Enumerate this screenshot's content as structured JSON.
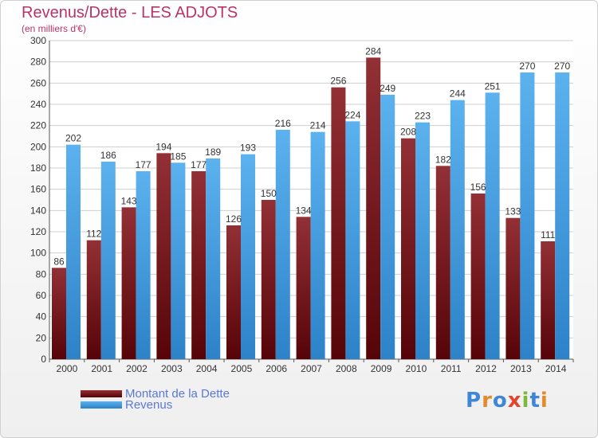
{
  "title": "Revenus/Dette - LES ADJOTS",
  "subtitle": "(en milliers d'€)",
  "colors": {
    "dette": "#7a1a1f",
    "revenus": "#4aa3e6",
    "title": "#b8336a",
    "legend_text": "#5a78d6"
  },
  "legend": [
    {
      "label": "Montant de la Dette",
      "color": "#7a1a1f"
    },
    {
      "label": "Revenus",
      "color": "#4aa3e6"
    }
  ],
  "logo": {
    "text": "Proxiti",
    "letters": [
      {
        "ch": "P",
        "color": "#3f86d6"
      },
      {
        "ch": "r",
        "color": "#e48a2a"
      },
      {
        "ch": "o",
        "color": "#3f86d6"
      },
      {
        "ch": "x",
        "color": "#e0462e"
      },
      {
        "ch": "i",
        "color": "#7cb83a"
      },
      {
        "ch": "t",
        "color": "#3f86d6"
      },
      {
        "ch": "i",
        "color": "#e48a2a"
      }
    ]
  },
  "chart_data": {
    "type": "bar",
    "categories": [
      "2000",
      "2001",
      "2002",
      "2003",
      "2004",
      "2005",
      "2006",
      "2007",
      "2008",
      "2009",
      "2010",
      "2011",
      "2012",
      "2013",
      "2014"
    ],
    "series": [
      {
        "name": "Montant de la Dette",
        "values": [
          86,
          112,
          143,
          194,
          177,
          126,
          150,
          134,
          256,
          284,
          208,
          182,
          156,
          133,
          111
        ]
      },
      {
        "name": "Revenus",
        "values": [
          202,
          186,
          177,
          185,
          189,
          193,
          216,
          214,
          224,
          249,
          223,
          244,
          251,
          270,
          270
        ]
      }
    ],
    "ylim": [
      0,
      300
    ],
    "yticks": [
      0,
      20,
      40,
      60,
      80,
      100,
      120,
      140,
      160,
      180,
      200,
      220,
      240,
      260,
      280,
      300
    ],
    "grid": true,
    "legend_position": "bottom-left"
  }
}
